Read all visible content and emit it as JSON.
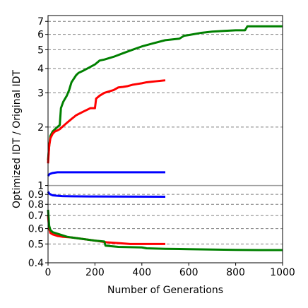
{
  "chart_data": {
    "type": "line",
    "xlabel": "Number of Generations",
    "ylabel": "Optimized IDT / Original IDT",
    "xlim": [
      0,
      1000
    ],
    "ylim": [
      0.4,
      7.5
    ],
    "yscale": "log",
    "x_ticks": [
      0,
      200,
      400,
      600,
      800,
      1000
    ],
    "x_tick_labels": [
      "0",
      "200",
      "400",
      "600",
      "800",
      "1000"
    ],
    "y_ticks": [
      0.4,
      0.5,
      0.6,
      0.7,
      0.8,
      0.9,
      1,
      2,
      3,
      4,
      5,
      6,
      7
    ],
    "y_tick_labels": [
      "0.4",
      "0.5",
      "0.6",
      "0.7",
      "0.8",
      "0.9",
      "1",
      "2",
      "3",
      "4",
      "5",
      "6",
      "7"
    ],
    "grid": "horizontal dashed at y ticks 0.5–0.9 and 2–7",
    "reference_line": {
      "y": 1,
      "color": "#9e9e9e"
    },
    "series": [
      {
        "color": "#008000",
        "x": [
          0,
          5,
          10,
          20,
          30,
          40,
          50,
          55,
          60,
          65,
          80,
          90,
          100,
          120,
          130,
          150,
          200,
          220,
          240,
          280,
          320,
          360,
          400,
          450,
          500,
          560,
          580,
          600,
          650,
          700,
          750,
          800,
          840,
          850,
          900,
          1000
        ],
        "y": [
          1.35,
          1.6,
          1.8,
          1.9,
          1.95,
          2.0,
          2.05,
          2.5,
          2.6,
          2.7,
          2.9,
          3.1,
          3.4,
          3.7,
          3.8,
          3.9,
          4.2,
          4.4,
          4.45,
          4.6,
          4.8,
          5.0,
          5.2,
          5.4,
          5.6,
          5.7,
          5.9,
          5.95,
          6.1,
          6.2,
          6.25,
          6.3,
          6.3,
          6.6,
          6.6,
          6.6
        ]
      },
      {
        "color": "#ff0000",
        "x": [
          0,
          5,
          10,
          20,
          30,
          40,
          50,
          60,
          80,
          100,
          120,
          150,
          180,
          200,
          205,
          220,
          240,
          260,
          280,
          300,
          320,
          340,
          360,
          380,
          400,
          420,
          440,
          460,
          480,
          500
        ],
        "y": [
          1.3,
          1.6,
          1.75,
          1.85,
          1.9,
          1.92,
          1.95,
          2.0,
          2.1,
          2.2,
          2.3,
          2.4,
          2.5,
          2.5,
          2.8,
          2.9,
          3.0,
          3.05,
          3.1,
          3.2,
          3.22,
          3.25,
          3.3,
          3.33,
          3.36,
          3.4,
          3.42,
          3.44,
          3.46,
          3.48
        ]
      },
      {
        "color": "#0000ff",
        "x": [
          0,
          5,
          10,
          20,
          40,
          60,
          100,
          200,
          300,
          400,
          500
        ],
        "y": [
          1.12,
          1.14,
          1.15,
          1.16,
          1.17,
          1.17,
          1.17,
          1.17,
          1.17,
          1.17,
          1.17
        ]
      },
      {
        "color": "#0000ff",
        "x": [
          0,
          5,
          10,
          20,
          40,
          60,
          100,
          200,
          300,
          400,
          500
        ],
        "y": [
          0.93,
          0.91,
          0.9,
          0.89,
          0.885,
          0.882,
          0.88,
          0.878,
          0.877,
          0.876,
          0.875
        ]
      },
      {
        "color": "#ff0000",
        "x": [
          0,
          5,
          10,
          20,
          40,
          60,
          100,
          150,
          200,
          250,
          300,
          350,
          400,
          450,
          500
        ],
        "y": [
          0.7,
          0.6,
          0.57,
          0.56,
          0.55,
          0.545,
          0.54,
          0.53,
          0.52,
          0.51,
          0.505,
          0.5,
          0.5,
          0.5,
          0.5
        ]
      },
      {
        "color": "#008000",
        "x": [
          0,
          5,
          10,
          20,
          40,
          60,
          80,
          100,
          150,
          200,
          240,
          245,
          300,
          400,
          420,
          500,
          600,
          700,
          800,
          900,
          1000
        ],
        "y": [
          0.75,
          0.62,
          0.59,
          0.575,
          0.565,
          0.555,
          0.545,
          0.54,
          0.53,
          0.52,
          0.515,
          0.49,
          0.483,
          0.48,
          0.475,
          0.472,
          0.47,
          0.468,
          0.466,
          0.465,
          0.465
        ]
      }
    ]
  }
}
